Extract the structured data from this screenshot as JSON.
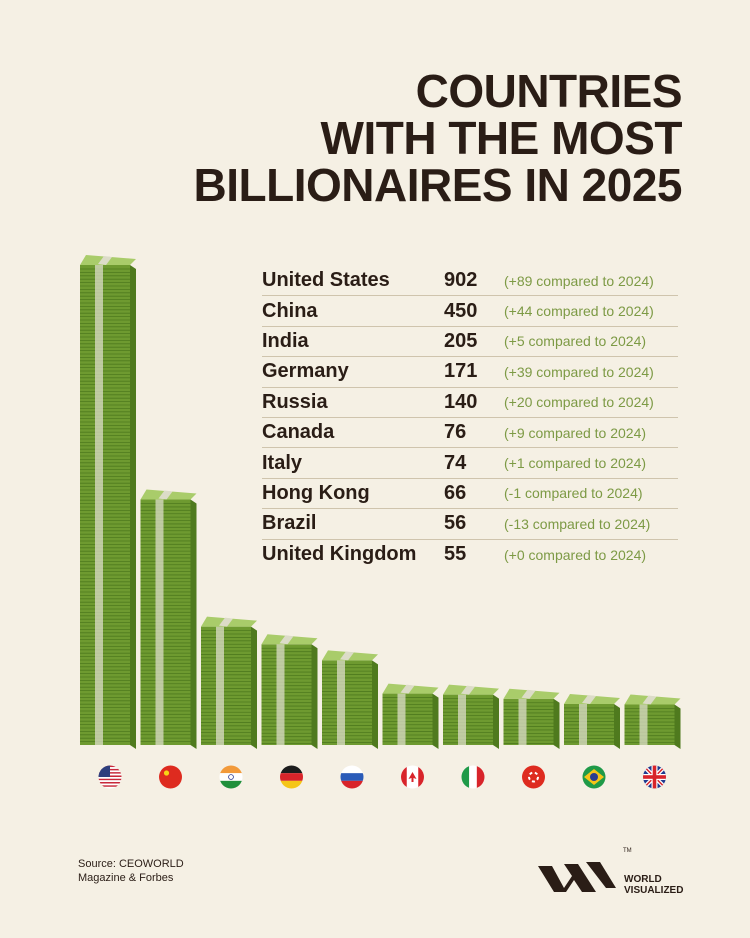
{
  "title_lines": [
    "COUNTRIES",
    "WITH THE MOST",
    "BILLIONAIRES IN 2025"
  ],
  "chart_data": {
    "type": "bar",
    "title": "COUNTRIES WITH THE MOST BILLIONAIRES IN 2025",
    "categories": [
      "United States",
      "China",
      "India",
      "Germany",
      "Russia",
      "Canada",
      "Italy",
      "Hong Kong",
      "Brazil",
      "United Kingdom"
    ],
    "values": [
      902,
      450,
      205,
      171,
      140,
      76,
      74,
      66,
      56,
      55
    ],
    "changes": [
      "(+89 compared to 2024)",
      "(+44 compared to 2024)",
      "(+5 compared to 2024)",
      "(+39 compared to 2024)",
      "(+20 compared to 2024)",
      "(+9 compared to 2024)",
      "(+1 compared to 2024)",
      "(-1 compared to 2024)",
      "(-13 compared to 2024)",
      "(+0 compared to 2024)"
    ],
    "flags": [
      "us-flag-icon",
      "china-flag-icon",
      "india-flag-icon",
      "germany-flag-icon",
      "russia-flag-icon",
      "canada-flag-icon",
      "italy-flag-icon",
      "hong-kong-flag-icon",
      "brazil-flag-icon",
      "uk-flag-icon"
    ],
    "colors": {
      "money_dark": "#4f7a1e",
      "money_mid": "#6e9a30",
      "money_light": "#a9cc6a",
      "band": "#dcdcc8",
      "change_text": "#7d9a45"
    }
  },
  "ranking": [
    {
      "country": "United States",
      "value": "902",
      "change": "(+89 compared to 2024)"
    },
    {
      "country": "China",
      "value": "450",
      "change": "(+44 compared to 2024)"
    },
    {
      "country": "India",
      "value": "205",
      "change": "(+5 compared to 2024)"
    },
    {
      "country": "Germany",
      "value": "171",
      "change": "(+39 compared to 2024)"
    },
    {
      "country": "Russia",
      "value": "140",
      "change": "(+20 compared to 2024)"
    },
    {
      "country": "Canada",
      "value": "76",
      "change": "(+9 compared to 2024)"
    },
    {
      "country": "Italy",
      "value": "74",
      "change": "(+1 compared to 2024)"
    },
    {
      "country": "Hong Kong",
      "value": "66",
      "change": "(-1 compared to 2024)"
    },
    {
      "country": "Brazil",
      "value": "56",
      "change": "(-13 compared to 2024)"
    },
    {
      "country": "United Kingdom",
      "value": "55",
      "change": "(+0 compared to 2024)"
    }
  ],
  "source_lines": [
    "Source: CEOWORLD",
    "Magazine & Forbes"
  ],
  "brand": {
    "name_lines": [
      "WORLD",
      "VISUALIZED"
    ],
    "tm": "TM",
    "logo": "world-visualized-logo"
  }
}
